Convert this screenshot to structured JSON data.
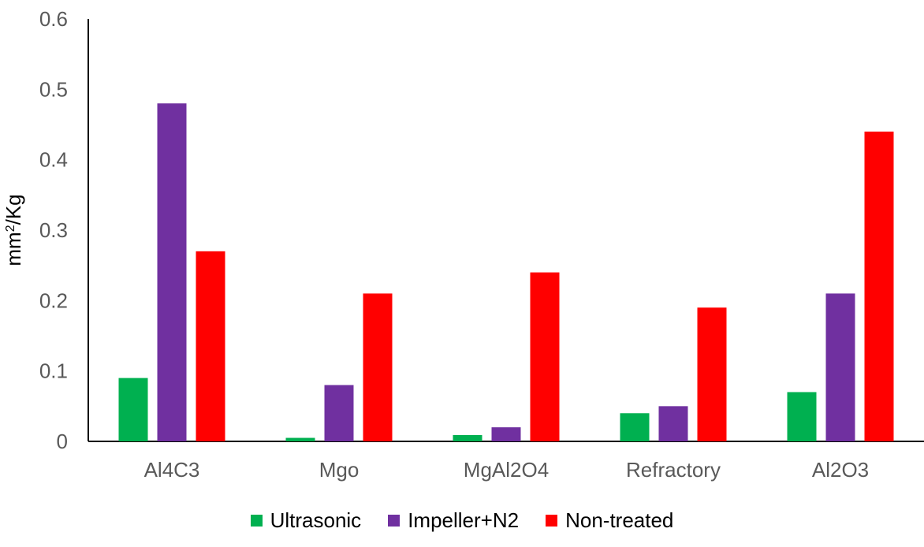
{
  "chart_data": {
    "type": "bar",
    "categories": [
      "Al4C3",
      "Mgo",
      "MgAl2O4",
      "Refractory",
      "Al2O3"
    ],
    "series": [
      {
        "name": "Ultrasonic",
        "color": "#00b050",
        "values": [
          0.09,
          0.005,
          0.009,
          0.04,
          0.07
        ]
      },
      {
        "name": "Impeller+N2",
        "color": "#7030a0",
        "values": [
          0.48,
          0.08,
          0.02,
          0.05,
          0.21
        ]
      },
      {
        "name": "Non-treated",
        "color": "#ff0000",
        "values": [
          0.27,
          0.21,
          0.24,
          0.19,
          0.44
        ]
      }
    ],
    "ylabel_base": "mm",
    "ylabel_sup": "2",
    "ylabel_rest": "/Kg",
    "ylim": [
      0,
      0.6
    ],
    "yticks": [
      "0",
      "0.1",
      "0.2",
      "0.3",
      "0.4",
      "0.5",
      "0.6"
    ],
    "grid": false,
    "legend_position": "bottom"
  }
}
